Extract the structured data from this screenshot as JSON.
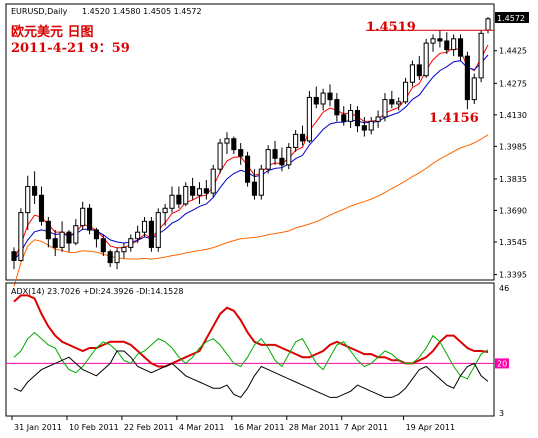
{
  "chart_data": [
    {
      "type": "candlestick",
      "symbol_label": "EURUSD,Daily",
      "ohlc_label": "1.4520 1.4580 1.4505 1.4572",
      "current_price_label": "1.4572",
      "ylim": [
        1.337,
        1.464
      ],
      "y_ticks": [
        "1.4425",
        "1.4275",
        "1.4130",
        "1.3985",
        "1.3835",
        "1.3690",
        "1.3545",
        "1.3395"
      ],
      "x_labels": [
        "31 Jan 2011",
        "10 Feb 2011",
        "22 Feb 2011",
        "4 Mar 2011",
        "16 Mar 2011",
        "28 Mar 2011",
        "7 Apr 2011",
        "19 Apr 2011"
      ],
      "annotations": {
        "title_line1": "欧元美元 日图",
        "title_line2": "2011-4-21 9：59",
        "high": "1.4519",
        "low": "1.4156"
      },
      "candles": [
        [
          1.35,
          1.352,
          1.342,
          1.346
        ],
        [
          1.346,
          1.37,
          1.3455,
          1.368
        ],
        [
          1.368,
          1.385,
          1.36,
          1.38
        ],
        [
          1.38,
          1.387,
          1.372,
          1.376
        ],
        [
          1.376,
          1.38,
          1.362,
          1.364
        ],
        [
          1.364,
          1.366,
          1.352,
          1.356
        ],
        [
          1.356,
          1.36,
          1.348,
          1.352
        ],
        [
          1.352,
          1.364,
          1.35,
          1.359
        ],
        [
          1.359,
          1.36,
          1.35,
          1.354
        ],
        [
          1.354,
          1.365,
          1.353,
          1.362
        ],
        [
          1.362,
          1.373,
          1.36,
          1.37
        ],
        [
          1.37,
          1.372,
          1.358,
          1.36
        ],
        [
          1.36,
          1.361,
          1.352,
          1.356
        ],
        [
          1.356,
          1.358,
          1.348,
          1.35
        ],
        [
          1.35,
          1.351,
          1.343,
          1.345
        ],
        [
          1.345,
          1.352,
          1.342,
          1.35
        ],
        [
          1.35,
          1.354,
          1.347,
          1.352
        ],
        [
          1.352,
          1.358,
          1.35,
          1.356
        ],
        [
          1.356,
          1.362,
          1.354,
          1.359
        ],
        [
          1.359,
          1.366,
          1.357,
          1.364
        ],
        [
          1.364,
          1.366,
          1.35,
          1.352
        ],
        [
          1.352,
          1.37,
          1.35,
          1.368
        ],
        [
          1.368,
          1.372,
          1.362,
          1.37
        ],
        [
          1.37,
          1.38,
          1.368,
          1.376
        ],
        [
          1.376,
          1.38,
          1.37,
          1.372
        ],
        [
          1.372,
          1.382,
          1.371,
          1.38
        ],
        [
          1.38,
          1.384,
          1.374,
          1.376
        ],
        [
          1.376,
          1.382,
          1.372,
          1.379
        ],
        [
          1.379,
          1.383,
          1.374,
          1.377
        ],
        [
          1.377,
          1.39,
          1.375,
          1.388
        ],
        [
          1.388,
          1.402,
          1.386,
          1.4
        ],
        [
          1.4,
          1.405,
          1.395,
          1.402
        ],
        [
          1.402,
          1.403,
          1.395,
          1.397
        ],
        [
          1.397,
          1.4,
          1.39,
          1.394
        ],
        [
          1.394,
          1.396,
          1.38,
          1.382
        ],
        [
          1.382,
          1.388,
          1.374,
          1.376
        ],
        [
          1.376,
          1.39,
          1.374,
          1.388
        ],
        [
          1.388,
          1.399,
          1.386,
          1.397
        ],
        [
          1.397,
          1.401,
          1.39,
          1.393
        ],
        [
          1.393,
          1.398,
          1.387,
          1.39
        ],
        [
          1.39,
          1.4,
          1.388,
          1.398
        ],
        [
          1.398,
          1.406,
          1.396,
          1.404
        ],
        [
          1.404,
          1.408,
          1.399,
          1.401
        ],
        [
          1.401,
          1.424,
          1.4,
          1.421
        ],
        [
          1.421,
          1.426,
          1.416,
          1.418
        ],
        [
          1.418,
          1.425,
          1.415,
          1.423
        ],
        [
          1.423,
          1.427,
          1.417,
          1.42
        ],
        [
          1.42,
          1.423,
          1.41,
          1.413
        ],
        [
          1.413,
          1.417,
          1.408,
          1.41
        ],
        [
          1.41,
          1.418,
          1.407,
          1.415
        ],
        [
          1.415,
          1.417,
          1.405,
          1.408
        ],
        [
          1.408,
          1.412,
          1.403,
          1.406
        ],
        [
          1.406,
          1.412,
          1.404,
          1.41
        ],
        [
          1.41,
          1.415,
          1.407,
          1.412
        ],
        [
          1.412,
          1.423,
          1.41,
          1.42
        ],
        [
          1.42,
          1.424,
          1.416,
          1.418
        ],
        [
          1.418,
          1.421,
          1.415,
          1.419
        ],
        [
          1.419,
          1.43,
          1.418,
          1.428
        ],
        [
          1.428,
          1.438,
          1.426,
          1.436
        ],
        [
          1.436,
          1.44,
          1.429,
          1.431
        ],
        [
          1.431,
          1.448,
          1.43,
          1.446
        ],
        [
          1.446,
          1.45,
          1.442,
          1.448
        ],
        [
          1.448,
          1.4519,
          1.444,
          1.447
        ],
        [
          1.447,
          1.451,
          1.441,
          1.443
        ],
        [
          1.443,
          1.45,
          1.44,
          1.448
        ],
        [
          1.448,
          1.45,
          1.438,
          1.44
        ],
        [
          1.44,
          1.442,
          1.4156,
          1.42
        ],
        [
          1.42,
          1.432,
          1.418,
          1.43
        ],
        [
          1.43,
          1.452,
          1.428,
          1.4505
        ],
        [
          1.452,
          1.458,
          1.4505,
          1.4572
        ]
      ],
      "ema_fast_color": "#ff0000",
      "ema_mid_color": "#0000cc",
      "ema_slow_color": "#ff6600",
      "ema_periods": [
        5,
        10,
        60
      ]
    },
    {
      "type": "line",
      "indicator_label": "ADX(14) 23.7026 +DI:24.3926 -DI:14.1528",
      "y_ticks": [
        "46",
        "20",
        "3"
      ],
      "ylim": [
        3,
        46
      ],
      "level": 20,
      "level_label": "20",
      "series": [
        {
          "color": "#dd0000",
          "values": [
            40,
            42,
            42,
            41,
            36,
            32,
            29,
            27,
            26,
            25,
            24,
            25,
            25,
            26,
            27,
            27,
            27,
            26,
            24,
            22,
            20,
            19,
            19,
            20,
            21,
            22,
            23,
            24,
            28,
            32,
            36,
            38,
            37,
            34,
            30,
            27,
            26,
            26,
            26,
            25,
            24,
            23,
            22,
            22,
            23,
            24,
            26,
            27,
            26,
            25,
            24,
            23,
            23,
            22,
            22,
            21,
            21,
            20,
            20,
            21,
            22,
            24,
            27,
            29,
            29,
            27,
            25,
            24,
            24,
            23.7
          ]
        },
        {
          "color": "#00aa00",
          "values": [
            22,
            24,
            28,
            30,
            28,
            26,
            25,
            21,
            18,
            17,
            19,
            22,
            25,
            27,
            26,
            24,
            21,
            20,
            23,
            24,
            26,
            28,
            27,
            25,
            22,
            20,
            22,
            25,
            27,
            28,
            26,
            23,
            20,
            19,
            22,
            26,
            28,
            25,
            21,
            19,
            23,
            27,
            28,
            24,
            20,
            18,
            22,
            26,
            27,
            24,
            21,
            19,
            20,
            22,
            24,
            23,
            21,
            20,
            20,
            22,
            25,
            29,
            27,
            23,
            19,
            16,
            15,
            19,
            23,
            24.4
          ]
        },
        {
          "color": "#000000",
          "values": [
            12,
            11,
            14,
            16,
            18,
            19,
            20,
            21,
            22,
            20,
            18,
            17,
            16,
            18,
            20,
            24,
            24,
            22,
            19,
            18,
            17,
            18,
            19,
            20,
            18,
            16,
            15,
            14,
            13,
            12,
            12,
            13,
            10,
            9,
            12,
            16,
            19,
            18,
            17,
            16,
            15,
            14,
            13,
            12,
            11,
            10,
            9,
            9,
            10,
            11,
            13,
            12,
            11,
            10,
            9,
            9,
            10,
            12,
            15,
            18,
            19,
            17,
            15,
            13,
            12,
            16,
            19,
            20,
            16,
            14.2
          ]
        }
      ]
    }
  ]
}
